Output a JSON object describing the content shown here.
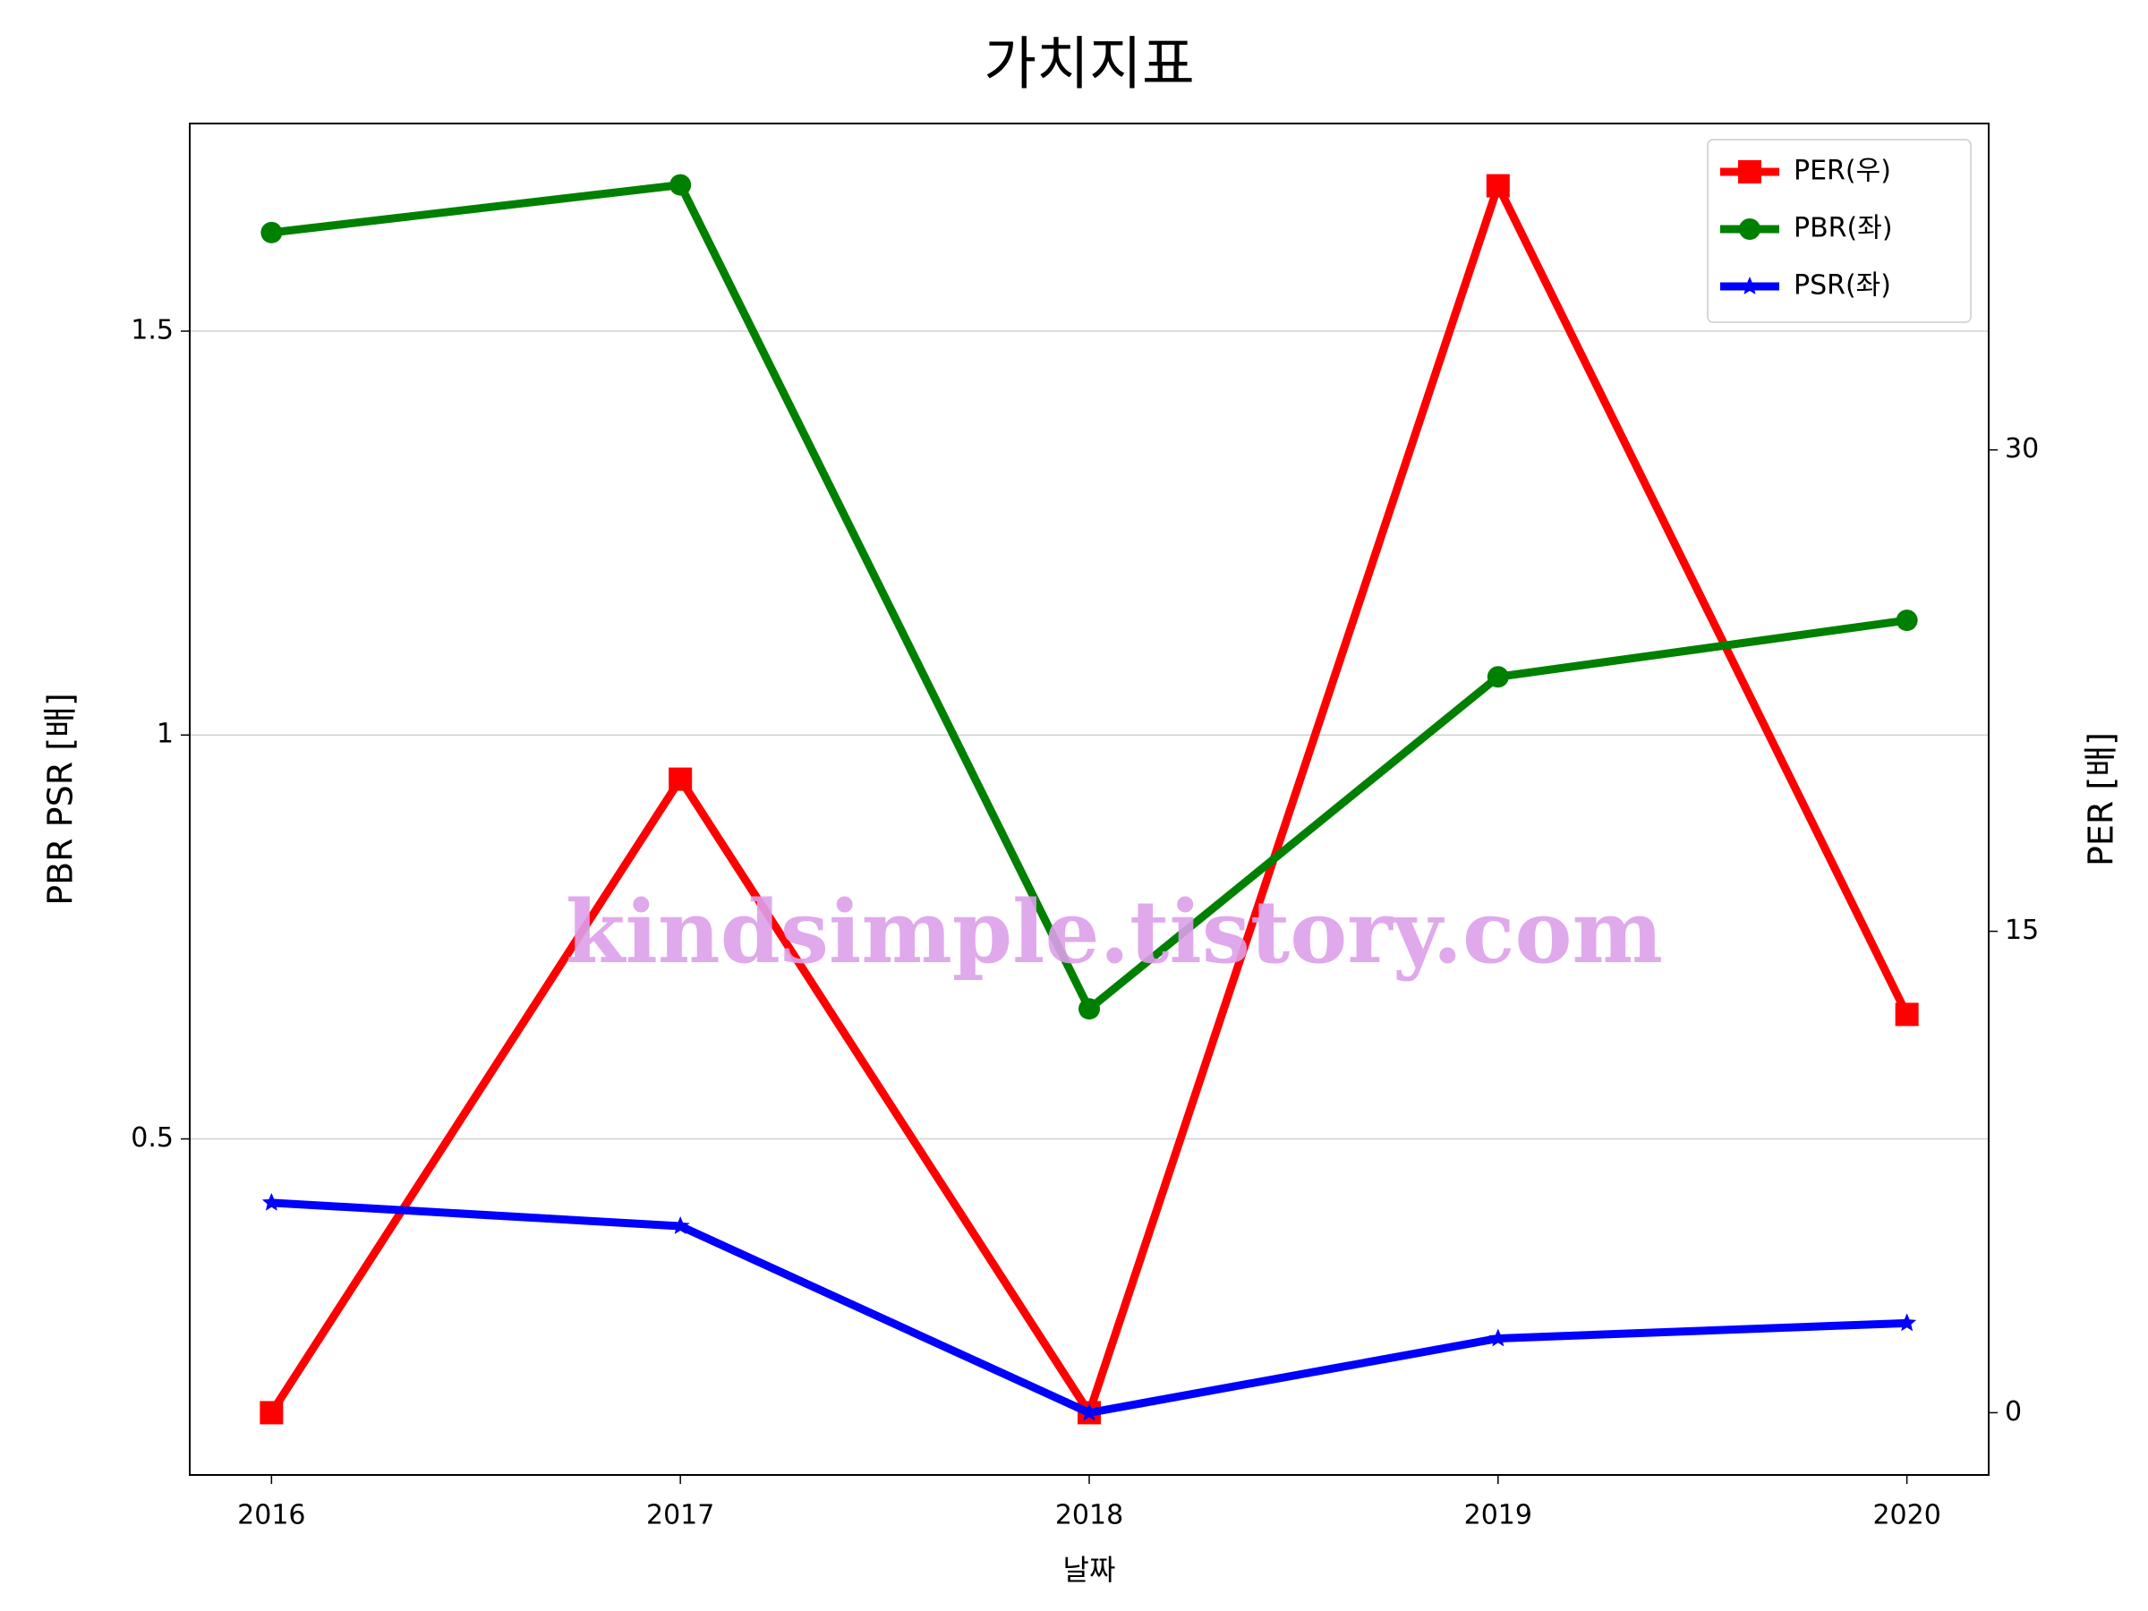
{
  "chart_data": {
    "type": "line",
    "title": "가치지표",
    "x_label": "날짜",
    "y_label": "PBR PSR [배]",
    "y2_label": "PER [배]",
    "watermark": "kindsimple.tistory.com",
    "x": [
      2016,
      2017,
      2018,
      2019,
      2020
    ],
    "xlim": [
      2015.8,
      2020.2
    ],
    "xticks": [
      2016,
      2017,
      2018,
      2019,
      2020
    ],
    "ylim": [
      0.084,
      1.757
    ],
    "yticks": [
      0.5,
      1.0,
      1.5
    ],
    "y2lim": [
      -1.94,
      40.17
    ],
    "y2ticks": [
      0,
      15,
      30
    ],
    "grid": true,
    "legend": "upper right",
    "y_label_color": "#008000",
    "y2_label_color": "#ff0000",
    "series": [
      {
        "name": "PER(우)",
        "color": "#ff0000",
        "marker": "square",
        "axis": "y2",
        "values": [
          0,
          19.74,
          0,
          38.23,
          12.41
        ]
      },
      {
        "name": "PBR(좌)",
        "color": "#008000",
        "marker": "circle",
        "values": [
          1.622,
          1.681,
          0.661,
          1.072,
          1.142
        ]
      },
      {
        "name": "PSR(좌)",
        "color": "#0000ff",
        "marker": "star",
        "values": [
          0.421,
          0.392,
          0.161,
          0.253,
          0.272
        ]
      }
    ]
  }
}
